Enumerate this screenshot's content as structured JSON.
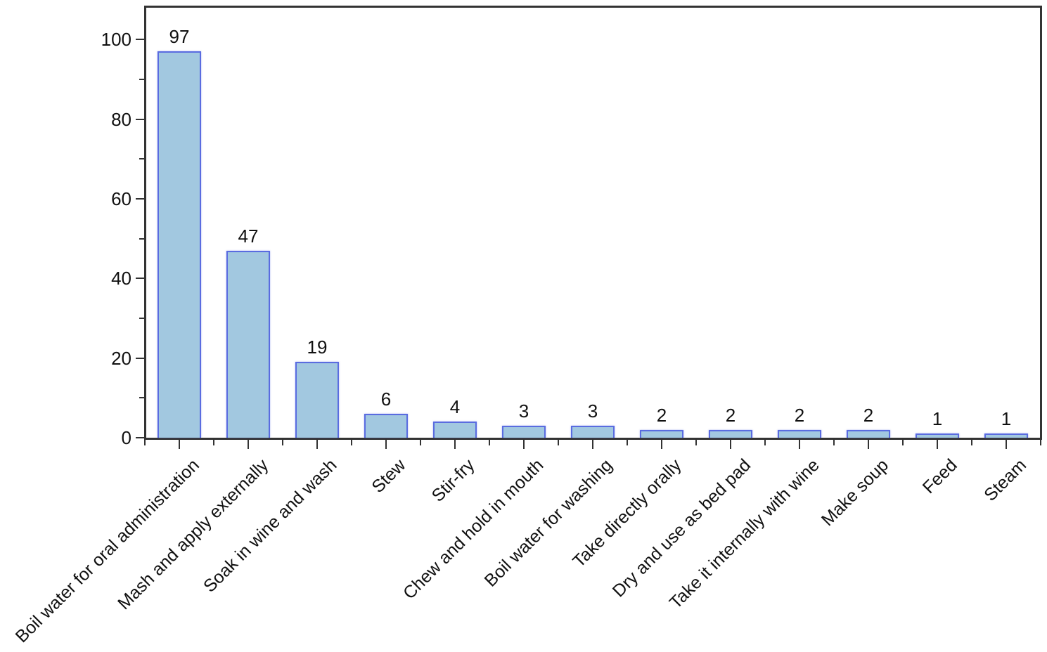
{
  "chart_data": {
    "type": "bar",
    "title": "",
    "xlabel": "",
    "ylabel": "",
    "categories": [
      "Boil water for oral administration",
      "Mash and apply externally",
      "Soak in wine and wash",
      "Stew",
      "Stir-fry",
      "Chew and hold in mouth",
      "Boil water for washing",
      "Take directly orally",
      "Dry and use as bed pad",
      "Take it internally with wine",
      "Make soup",
      "Feed",
      "Steam"
    ],
    "values": [
      97,
      47,
      19,
      6,
      4,
      3,
      3,
      2,
      2,
      2,
      2,
      1,
      1
    ],
    "value_labels_shown": true,
    "ylim": [
      0,
      108
    ],
    "yticks_major": [
      0,
      20,
      40,
      60,
      80,
      100
    ],
    "yticks_minor": [
      10,
      30,
      50,
      70,
      90
    ],
    "grid": false,
    "legend": null,
    "x_label_rotation_deg": 45,
    "colors": {
      "bar_fill": "#a2c8e0",
      "bar_stroke": "#5a6ce0",
      "axis": "#333333",
      "text": "#111111",
      "background": "#ffffff"
    }
  }
}
